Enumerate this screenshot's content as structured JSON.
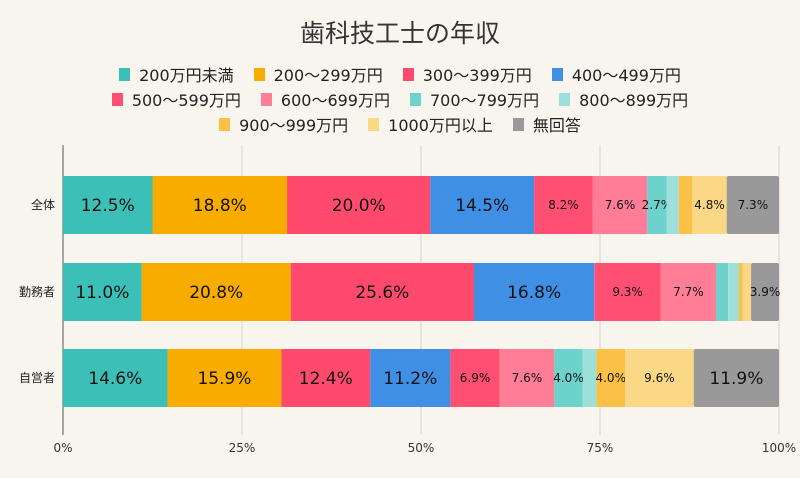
{
  "chart_data": {
    "type": "bar",
    "orientation": "horizontal",
    "stacked": "100%",
    "title": "歯科技工士の年収",
    "categories": [
      "全体",
      "勤務者",
      "自営者"
    ],
    "series": [
      {
        "name": "200万円未満",
        "color": "#3cbfb6",
        "values": [
          12.5,
          11.0,
          14.6
        ]
      },
      {
        "name": "200〜299万円",
        "color": "#f9ac00",
        "values": [
          18.8,
          20.8,
          15.9
        ]
      },
      {
        "name": "300〜399万円",
        "color": "#ff4a6e",
        "values": [
          20.0,
          25.6,
          12.4
        ]
      },
      {
        "name": "400〜499万円",
        "color": "#3f8fe5",
        "values": [
          14.5,
          16.8,
          11.2
        ]
      },
      {
        "name": "500〜599万円",
        "color": "#ff4f72",
        "values": [
          8.2,
          9.3,
          6.9
        ]
      },
      {
        "name": "600〜699万円",
        "color": "#ff7d96",
        "values": [
          7.6,
          7.7,
          7.6
        ]
      },
      {
        "name": "700〜799万円",
        "color": "#6dd2cc",
        "values": [
          2.7,
          1.7,
          4.0
        ]
      },
      {
        "name": "800〜899万円",
        "color": "#9de0db",
        "values": [
          1.7,
          1.5,
          1.9
        ]
      },
      {
        "name": "900〜999万円",
        "color": "#fbc146",
        "values": [
          1.9,
          0.5,
          4.0
        ]
      },
      {
        "name": "1000万円以上",
        "color": "#fbd886",
        "values": [
          4.8,
          1.2,
          9.6
        ]
      },
      {
        "name": "無回答",
        "color": "#999999",
        "values": [
          7.3,
          3.9,
          11.9
        ]
      }
    ],
    "xticks": [
      "0%",
      "25%",
      "50%",
      "75%",
      "100%"
    ],
    "xlim": [
      0,
      100
    ],
    "grid": "vertical",
    "legend": "top"
  }
}
